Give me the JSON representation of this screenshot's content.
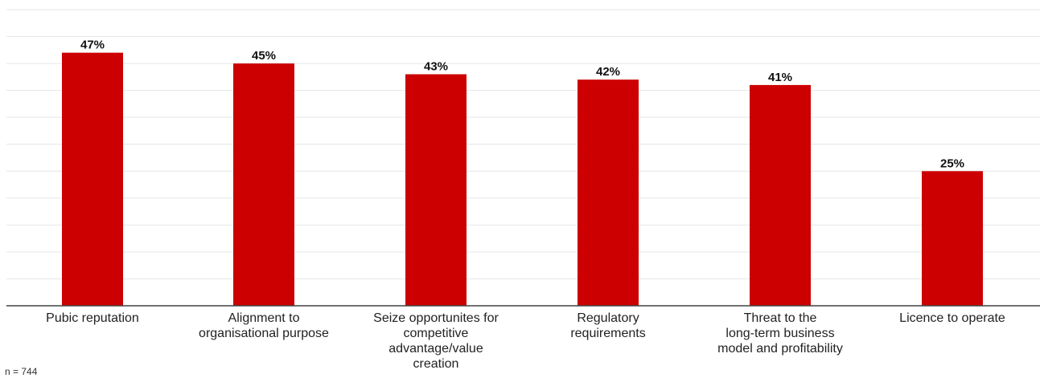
{
  "chart_data": {
    "type": "bar",
    "categories": [
      [
        "Pubic reputation"
      ],
      [
        "Alignment to",
        "organisational purpose"
      ],
      [
        "Seize opportunites for",
        "competitive",
        "advantage/value",
        "creation"
      ],
      [
        "Regulatory",
        "requirements"
      ],
      [
        "Threat to the",
        "long-term business",
        "model and profitability"
      ],
      [
        "Licence to operate"
      ]
    ],
    "values": [
      47,
      45,
      43,
      42,
      41,
      25
    ],
    "value_labels": [
      "47%",
      "45%",
      "43%",
      "42%",
      "41%",
      "25%"
    ],
    "ylim": [
      0,
      55
    ],
    "grid": true,
    "bar_color": "#cc0000",
    "grid_color": "#e6e6e6",
    "axis_color": "#444444"
  },
  "footnote": "n = 744"
}
